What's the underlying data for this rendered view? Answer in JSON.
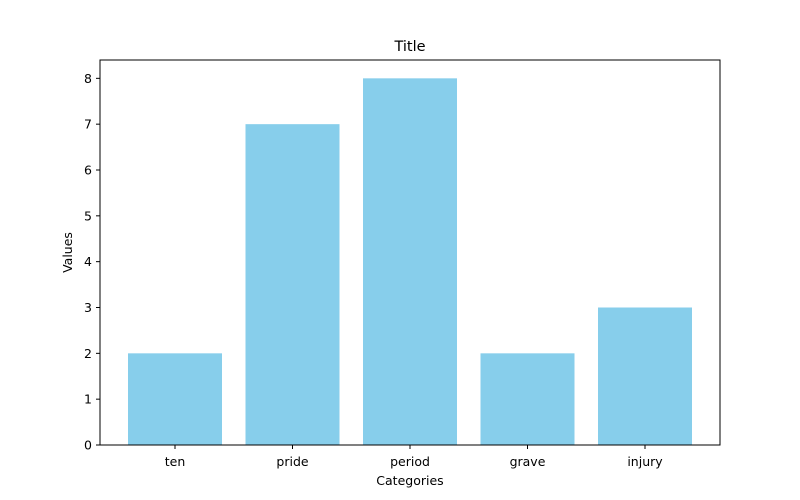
{
  "chart_data": {
    "type": "bar",
    "title": "Title",
    "xlabel": "Categories",
    "ylabel": "Values",
    "categories": [
      "ten",
      "pride",
      "period",
      "grave",
      "injury"
    ],
    "values": [
      2,
      7,
      8,
      2,
      3
    ],
    "ylim": [
      0,
      8.4
    ],
    "yticks": [
      0,
      1,
      2,
      3,
      4,
      5,
      6,
      7,
      8
    ],
    "grid": false,
    "legend": "none",
    "bar_color": "#87CEEB",
    "axis_color": "#000000"
  }
}
